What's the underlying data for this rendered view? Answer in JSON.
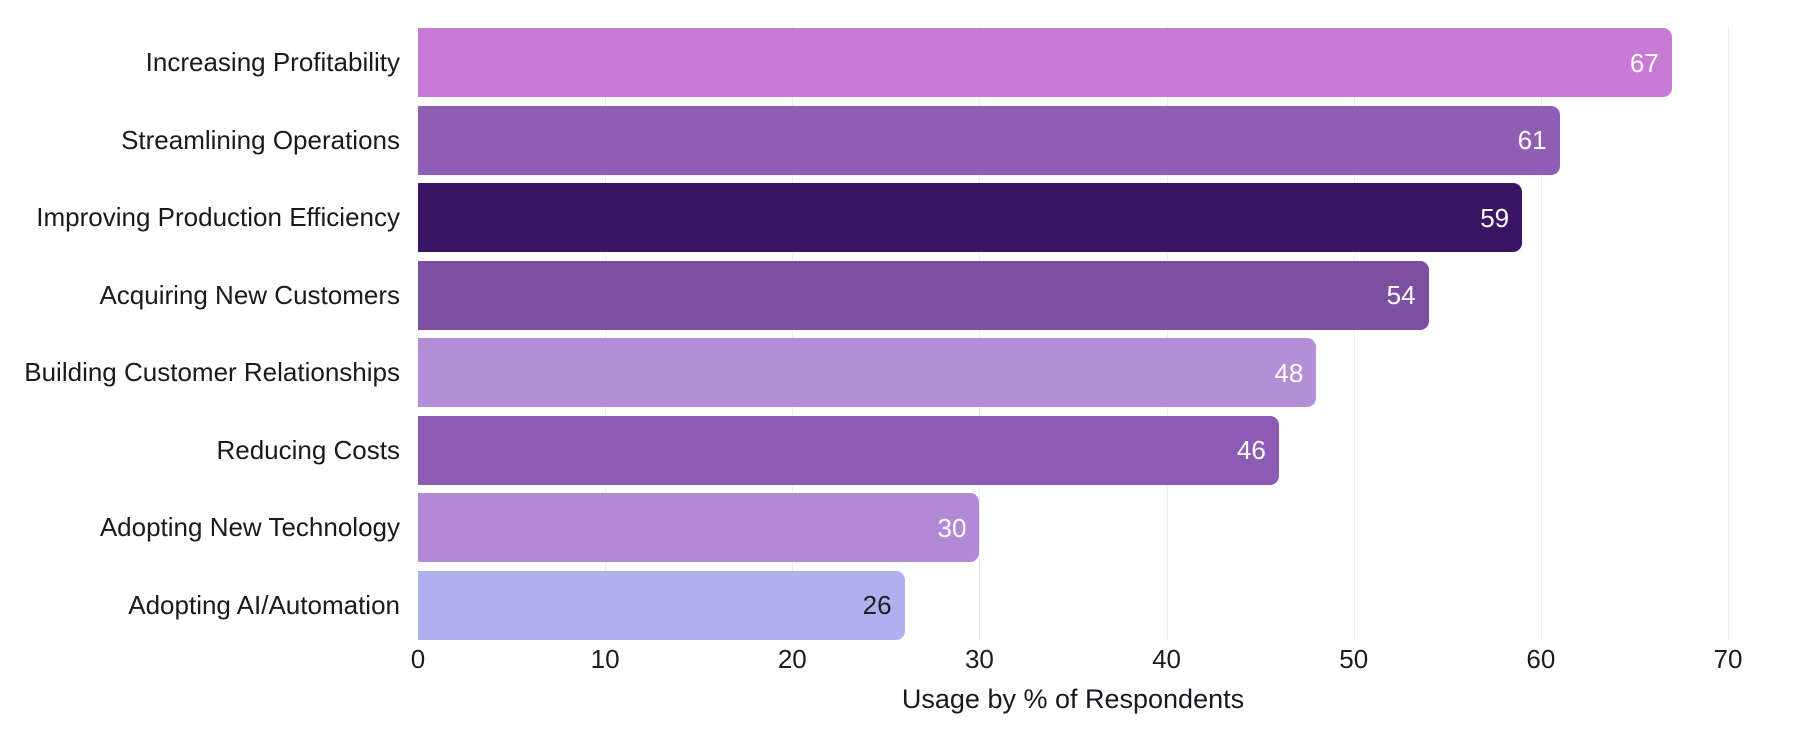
{
  "chart_data": {
    "type": "bar",
    "orientation": "horizontal",
    "categories": [
      "Increasing Profitability",
      "Streamlining Operations",
      "Improving Production Efficiency",
      "Acquiring New Customers",
      "Building Customer Relationships",
      "Reducing Costs",
      "Adopting New Technology",
      "Adopting AI/Automation"
    ],
    "values": [
      67,
      61,
      59,
      54,
      48,
      46,
      30,
      26
    ],
    "bar_colors": [
      "#c87bd6",
      "#8e5fb5",
      "#3b1565",
      "#7b4fa1",
      "#b58ed8",
      "#8c5bb4",
      "#b389d5",
      "#aeb1ee"
    ],
    "value_label_colors": [
      "#ffffff",
      "#ffffff",
      "#ffffff",
      "#ffffff",
      "#ffffff",
      "#ffffff",
      "#ffffff",
      "#1e1e28"
    ],
    "xlabel": "Usage by % of Respondents",
    "x_ticks": [
      0,
      10,
      20,
      30,
      40,
      50,
      60,
      70
    ],
    "xlim": [
      0,
      70
    ],
    "grid": "vertical-only",
    "gridline_color": "#ededed",
    "background_color": "#ffffff",
    "legend": "none",
    "title": ""
  }
}
